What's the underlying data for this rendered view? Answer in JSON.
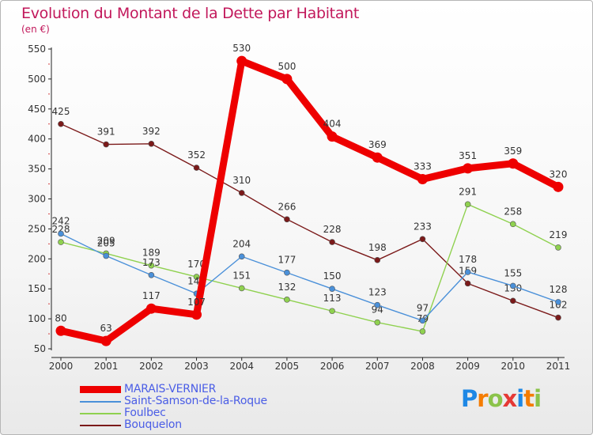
{
  "title": "Evolution du Montant de la Dette par Habitant",
  "unit_label": "(en €)",
  "logo_text": "Proxiti",
  "logo_colors": [
    "#1e88e5",
    "#f57c00",
    "#8bc34a",
    "#e53935",
    "#1e88e5",
    "#f57c00",
    "#8bc34a"
  ],
  "chart_data": {
    "type": "line",
    "title": "Evolution du Montant de la Dette par Habitant",
    "subtitle": "(en €)",
    "xlabel": "",
    "ylabel": "",
    "x": [
      "2000",
      "2001",
      "2002",
      "2003",
      "2004",
      "2005",
      "2006",
      "2007",
      "2008",
      "2009",
      "2010",
      "2011"
    ],
    "ylim": [
      50,
      550
    ],
    "yticks": [
      50,
      100,
      150,
      200,
      250,
      300,
      350,
      400,
      450,
      500,
      550
    ],
    "grid": false,
    "legend_position": "bottom-left",
    "series": [
      {
        "name": "Bouquelon",
        "color": "#7b1a1a",
        "values": [
          425,
          391,
          392,
          352,
          310,
          266,
          228,
          198,
          233,
          159,
          130,
          102
        ]
      },
      {
        "name": "Foulbec",
        "color": "#8fd14f",
        "values": [
          228,
          209,
          189,
          170,
          151,
          132,
          113,
          94,
          79,
          291,
          258,
          219
        ]
      },
      {
        "name": "Saint-Samson-de-la-Roque",
        "color": "#4a90d9",
        "values": [
          242,
          205,
          173,
          142,
          204,
          177,
          150,
          123,
          97,
          178,
          155,
          128
        ]
      },
      {
        "name": "MARAIS-VERNIER",
        "color": "#ee0000",
        "values": [
          80,
          63,
          117,
          107,
          530,
          500,
          404,
          369,
          333,
          351,
          359,
          320
        ]
      }
    ],
    "legend_order": [
      "MARAIS-VERNIER",
      "Saint-Samson-de-la-Roque",
      "Foulbec",
      "Bouquelon"
    ]
  }
}
